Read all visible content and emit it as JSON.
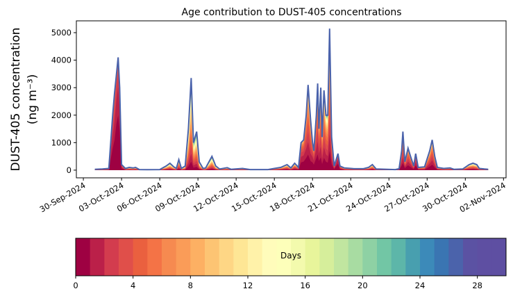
{
  "chart_data": {
    "type": "area",
    "title": "Age contribution to DUST-405 concentrations",
    "ylabel_line1": "DUST-405 concentration",
    "ylabel_line2": "(ng m⁻³)",
    "xlabel": "",
    "x_unit": "days since 30-Sep-2024 00:00",
    "xlim_days": [
      -0.55,
      33.2
    ],
    "ylim": [
      -280,
      5430
    ],
    "yticks": [
      0,
      1000,
      2000,
      3000,
      4000,
      5000
    ],
    "xticks": [
      {
        "day": 0,
        "label": "30-Sep-2024"
      },
      {
        "day": 3,
        "label": "03-Oct-2024"
      },
      {
        "day": 6,
        "label": "06-Oct-2024"
      },
      {
        "day": 9,
        "label": "09-Oct-2024"
      },
      {
        "day": 12,
        "label": "12-Oct-2024"
      },
      {
        "day": 15,
        "label": "15-Oct-2024"
      },
      {
        "day": 18,
        "label": "18-Oct-2024"
      },
      {
        "day": 21,
        "label": "21-Oct-2024"
      },
      {
        "day": 24,
        "label": "24-Oct-2024"
      },
      {
        "day": 27,
        "label": "27-Oct-2024"
      },
      {
        "day": 30,
        "label": "30-Oct-2024"
      },
      {
        "day": 33,
        "label": "02-Nov-2024"
      }
    ],
    "series_note": "points are [day, total concentration, mean age in days]; stacked by age bin 0-30 days",
    "points": [
      [
        0.9,
        30,
        10
      ],
      [
        1.5,
        40,
        10
      ],
      [
        2.0,
        60,
        6
      ],
      [
        2.3,
        2000,
        2
      ],
      [
        2.45,
        2800,
        2
      ],
      [
        2.6,
        3500,
        1.5
      ],
      [
        2.73,
        4100,
        1.5
      ],
      [
        2.85,
        3000,
        1.5
      ],
      [
        3.0,
        200,
        3
      ],
      [
        3.3,
        60,
        8
      ],
      [
        3.6,
        100,
        10
      ],
      [
        3.9,
        80,
        10
      ],
      [
        4.1,
        100,
        10
      ],
      [
        4.4,
        20,
        10
      ],
      [
        5.0,
        15,
        10
      ],
      [
        6.0,
        20,
        10
      ],
      [
        6.5,
        150,
        12
      ],
      [
        6.8,
        250,
        12
      ],
      [
        7.1,
        120,
        12
      ],
      [
        7.3,
        60,
        10
      ],
      [
        7.5,
        380,
        8
      ],
      [
        7.7,
        60,
        10
      ],
      [
        8.0,
        150,
        12
      ],
      [
        8.25,
        1500,
        12
      ],
      [
        8.47,
        3350,
        11
      ],
      [
        8.65,
        1000,
        12
      ],
      [
        8.9,
        1400,
        12
      ],
      [
        9.1,
        300,
        12
      ],
      [
        9.4,
        60,
        12
      ],
      [
        9.6,
        80,
        12
      ],
      [
        10.1,
        500,
        13
      ],
      [
        10.4,
        150,
        13
      ],
      [
        10.7,
        40,
        12
      ],
      [
        11.3,
        90,
        12
      ],
      [
        11.6,
        30,
        12
      ],
      [
        12.5,
        60,
        12
      ],
      [
        13.1,
        20,
        12
      ],
      [
        14.5,
        20,
        10
      ],
      [
        15.0,
        60,
        10
      ],
      [
        15.5,
        100,
        8
      ],
      [
        16.0,
        200,
        8
      ],
      [
        16.3,
        80,
        8
      ],
      [
        16.6,
        250,
        7
      ],
      [
        16.9,
        100,
        5
      ],
      [
        17.1,
        1000,
        3
      ],
      [
        17.3,
        1100,
        3
      ],
      [
        17.5,
        2000,
        4
      ],
      [
        17.65,
        3100,
        5
      ],
      [
        17.85,
        1800,
        5
      ],
      [
        18.0,
        1000,
        3
      ],
      [
        18.1,
        700,
        3
      ],
      [
        18.3,
        2000,
        4
      ],
      [
        18.4,
        3150,
        5
      ],
      [
        18.5,
        1500,
        4
      ],
      [
        18.65,
        3000,
        6
      ],
      [
        18.75,
        1200,
        5
      ],
      [
        18.9,
        2900,
        6
      ],
      [
        19.05,
        2000,
        6
      ],
      [
        19.2,
        2000,
        7
      ],
      [
        19.34,
        5150,
        7
      ],
      [
        19.5,
        1200,
        5
      ],
      [
        19.7,
        150,
        4
      ],
      [
        19.9,
        450,
        2
      ],
      [
        20.0,
        600,
        2
      ],
      [
        20.15,
        150,
        4
      ],
      [
        20.5,
        80,
        8
      ],
      [
        21.3,
        50,
        8
      ],
      [
        22.0,
        50,
        8
      ],
      [
        22.4,
        100,
        8
      ],
      [
        22.7,
        200,
        8
      ],
      [
        23.0,
        40,
        8
      ],
      [
        24.5,
        20,
        8
      ],
      [
        24.8,
        50,
        6
      ],
      [
        25.0,
        700,
        4
      ],
      [
        25.1,
        1400,
        5
      ],
      [
        25.25,
        300,
        4
      ],
      [
        25.5,
        800,
        4
      ],
      [
        25.7,
        500,
        4
      ],
      [
        25.95,
        150,
        4
      ],
      [
        26.1,
        600,
        3
      ],
      [
        26.3,
        100,
        5
      ],
      [
        26.8,
        120,
        6
      ],
      [
        27.2,
        700,
        5
      ],
      [
        27.4,
        1100,
        5
      ],
      [
        27.6,
        500,
        5
      ],
      [
        27.8,
        100,
        6
      ],
      [
        28.3,
        60,
        8
      ],
      [
        28.8,
        80,
        8
      ],
      [
        29.1,
        30,
        8
      ],
      [
        29.8,
        40,
        8
      ],
      [
        30.3,
        200,
        8
      ],
      [
        30.6,
        250,
        9
      ],
      [
        30.9,
        200,
        9
      ],
      [
        31.1,
        60,
        8
      ],
      [
        31.5,
        40,
        8
      ],
      [
        31.8,
        30,
        8
      ]
    ],
    "line_color": "#4a62ab",
    "colorbar": {
      "label": "Days",
      "range": [
        0,
        30
      ],
      "ticks": [
        0,
        4,
        8,
        12,
        16,
        20,
        24,
        28
      ],
      "colors": [
        "#9e0142",
        "#bb2049",
        "#d33c4e",
        "#e04f4a",
        "#ea603f",
        "#f47346",
        "#f68a50",
        "#fa9c58",
        "#fdb063",
        "#fdc473",
        "#fed685",
        "#fee695",
        "#fff2a9",
        "#fffcbb",
        "#fdffba",
        "#f3faad",
        "#e8f59b",
        "#d6ee9b",
        "#c1e6a0",
        "#a8dca2",
        "#8ed1a4",
        "#72c6a5",
        "#5db6a9",
        "#489faf",
        "#3c8ab9",
        "#3a75b2",
        "#4b63ab",
        "#5b52a3",
        "#5e4fa2",
        "#5e4fa2"
      ]
    }
  }
}
